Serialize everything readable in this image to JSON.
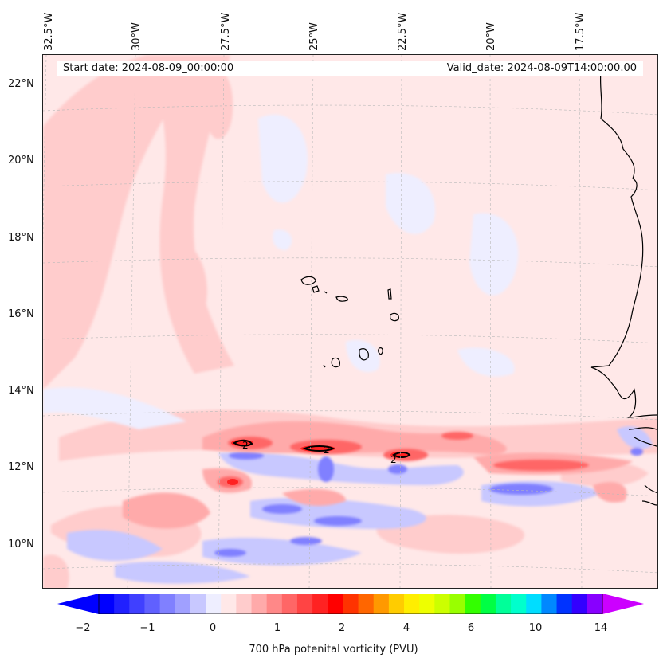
{
  "header": {
    "start_date": "Start date: 2024-08-09_00:00:00",
    "valid_date": "Valid_date: 2024-08-09T14:00:00.00"
  },
  "longitude_labels": [
    "32.5°W",
    "30°W",
    "27.5°W",
    "25°W",
    "22.5°W",
    "20°W",
    "17.5°W"
  ],
  "latitude_labels": [
    "22°N",
    "20°N",
    "18°N",
    "16°N",
    "14°N",
    "12°N",
    "10°N"
  ],
  "map_extent": {
    "lon_min": -32.6,
    "lon_max": -15.3,
    "lat_min": 8.9,
    "lat_max": 22.8
  },
  "contour_labels": [
    "2",
    "2",
    "2"
  ],
  "colorbar": {
    "label": "700 hPa potenital vorticity (PVU)",
    "ticks": [
      "−2",
      "−1",
      "0",
      "1",
      "2",
      "4",
      "6",
      "10",
      "14"
    ],
    "colors": [
      "#0000ff",
      "#2020ff",
      "#4040ff",
      "#6060ff",
      "#8080ff",
      "#a0a0ff",
      "#c8c8ff",
      "#eeeeff",
      "#ffe8e8",
      "#ffcccc",
      "#ffaaaa",
      "#ff8888",
      "#ff6666",
      "#ff4444",
      "#ff2222",
      "#ff0000",
      "#ff3300",
      "#ff6600",
      "#ff9900",
      "#ffcc00",
      "#ffee00",
      "#eeff00",
      "#ccff00",
      "#99ff00",
      "#33ff00",
      "#00ff44",
      "#00ff99",
      "#00ffcc",
      "#00ddff",
      "#0088ff",
      "#0033ff",
      "#3300ff",
      "#8800ff"
    ],
    "extend_low_color": "#0000ff",
    "extend_high_color": "#cc00ff"
  }
}
